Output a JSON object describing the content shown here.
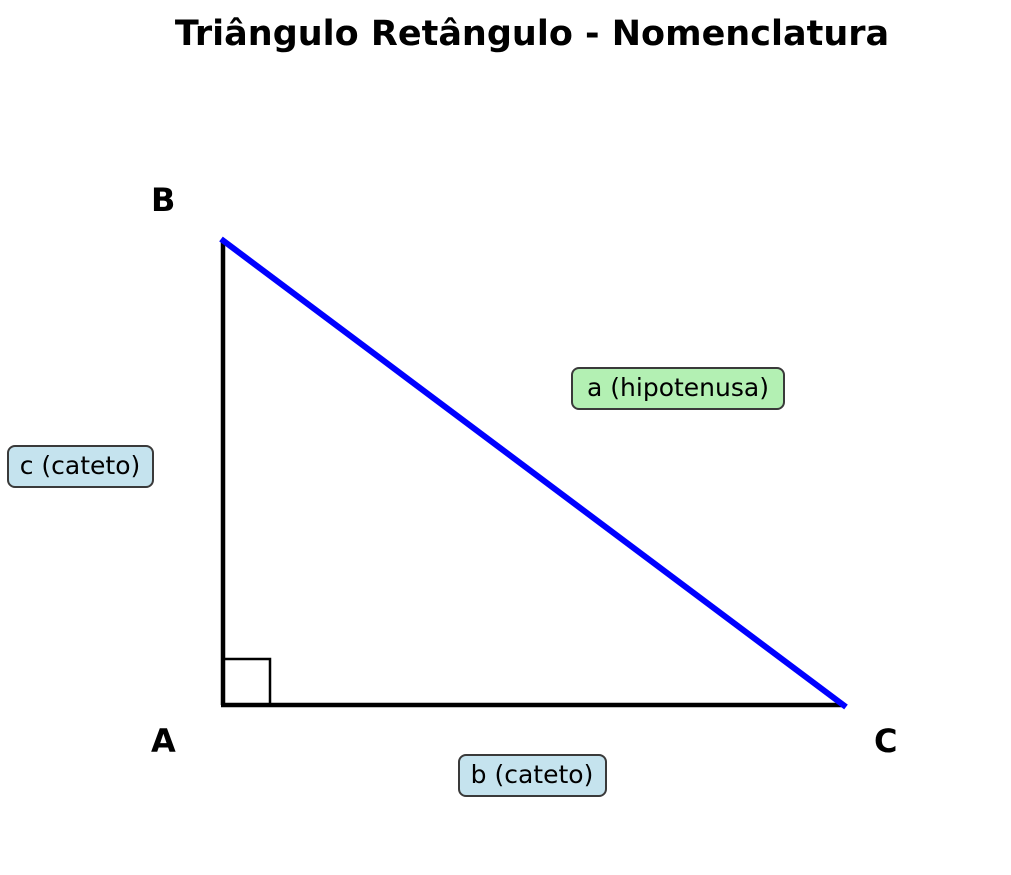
{
  "title": "Triângulo Retângulo - Nomenclatura",
  "vertices": {
    "A": "A",
    "B": "B",
    "C": "C"
  },
  "sides": {
    "hypotenuse": "a (hipotenusa)",
    "leg_b": "b (cateto)",
    "leg_c": "c (cateto)"
  },
  "colors": {
    "hypotenuse": "#0000ff",
    "legs": "#000000",
    "hypotenuse_label_bg": "#b3f0b3",
    "leg_label_bg": "#c5e3ee",
    "label_border": "#3a3a3a"
  }
}
